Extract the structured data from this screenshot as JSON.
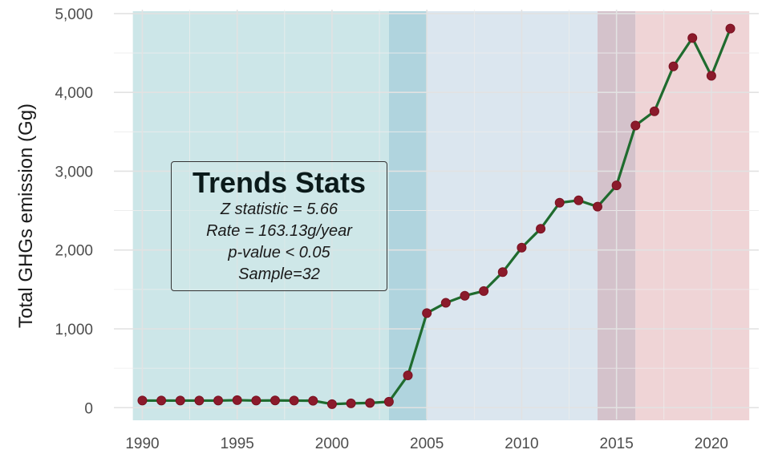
{
  "chart_data": {
    "type": "line",
    "title": "",
    "xlabel": "",
    "ylabel": "Total GHGs emission (Gg)",
    "xlim": [
      1988.5,
      2022.5
    ],
    "ylim": [
      -150,
      5050
    ],
    "x_ticks": [
      "1990",
      "1995",
      "2000",
      "2005",
      "2010",
      "2015",
      "2020"
    ],
    "y_ticks": [
      "0",
      "1,000",
      "2,000",
      "3,000",
      "4,000",
      "5,000"
    ],
    "grid": true,
    "shaded_periods": [
      {
        "from": 1989.5,
        "to": 2003,
        "color": "#cce6e8"
      },
      {
        "from": 2003,
        "to": 2005,
        "color": "#b0d4de"
      },
      {
        "from": 2005,
        "to": 2014,
        "color": "#dbe6ef"
      },
      {
        "from": 2014,
        "to": 2016,
        "color": "#d4c2cb"
      },
      {
        "from": 2016,
        "to": 2022,
        "color": "#efd4d6"
      }
    ],
    "line_color": "#1f6b2e",
    "marker_color": "#8b1a2b",
    "x": [
      1990,
      1991,
      1992,
      1993,
      1994,
      1995,
      1996,
      1997,
      1998,
      1999,
      2000,
      2001,
      2002,
      2003,
      2004,
      2005,
      2006,
      2007,
      2008,
      2009,
      2010,
      2011,
      2012,
      2013,
      2014,
      2015,
      2016,
      2017,
      2018,
      2019,
      2020,
      2021
    ],
    "y": [
      90,
      90,
      90,
      90,
      90,
      95,
      90,
      92,
      90,
      88,
      45,
      55,
      60,
      75,
      410,
      1200,
      1330,
      1420,
      1480,
      1720,
      2030,
      2270,
      2600,
      2630,
      2550,
      2820,
      3580,
      3760,
      4330,
      4690,
      4210,
      4810
    ]
  },
  "stats_box": {
    "title": "Trends Stats",
    "lines": [
      "Z statistic = 5.66",
      "Rate = 163.13g/year",
      "p-value < 0.05",
      "Sample=32"
    ]
  }
}
